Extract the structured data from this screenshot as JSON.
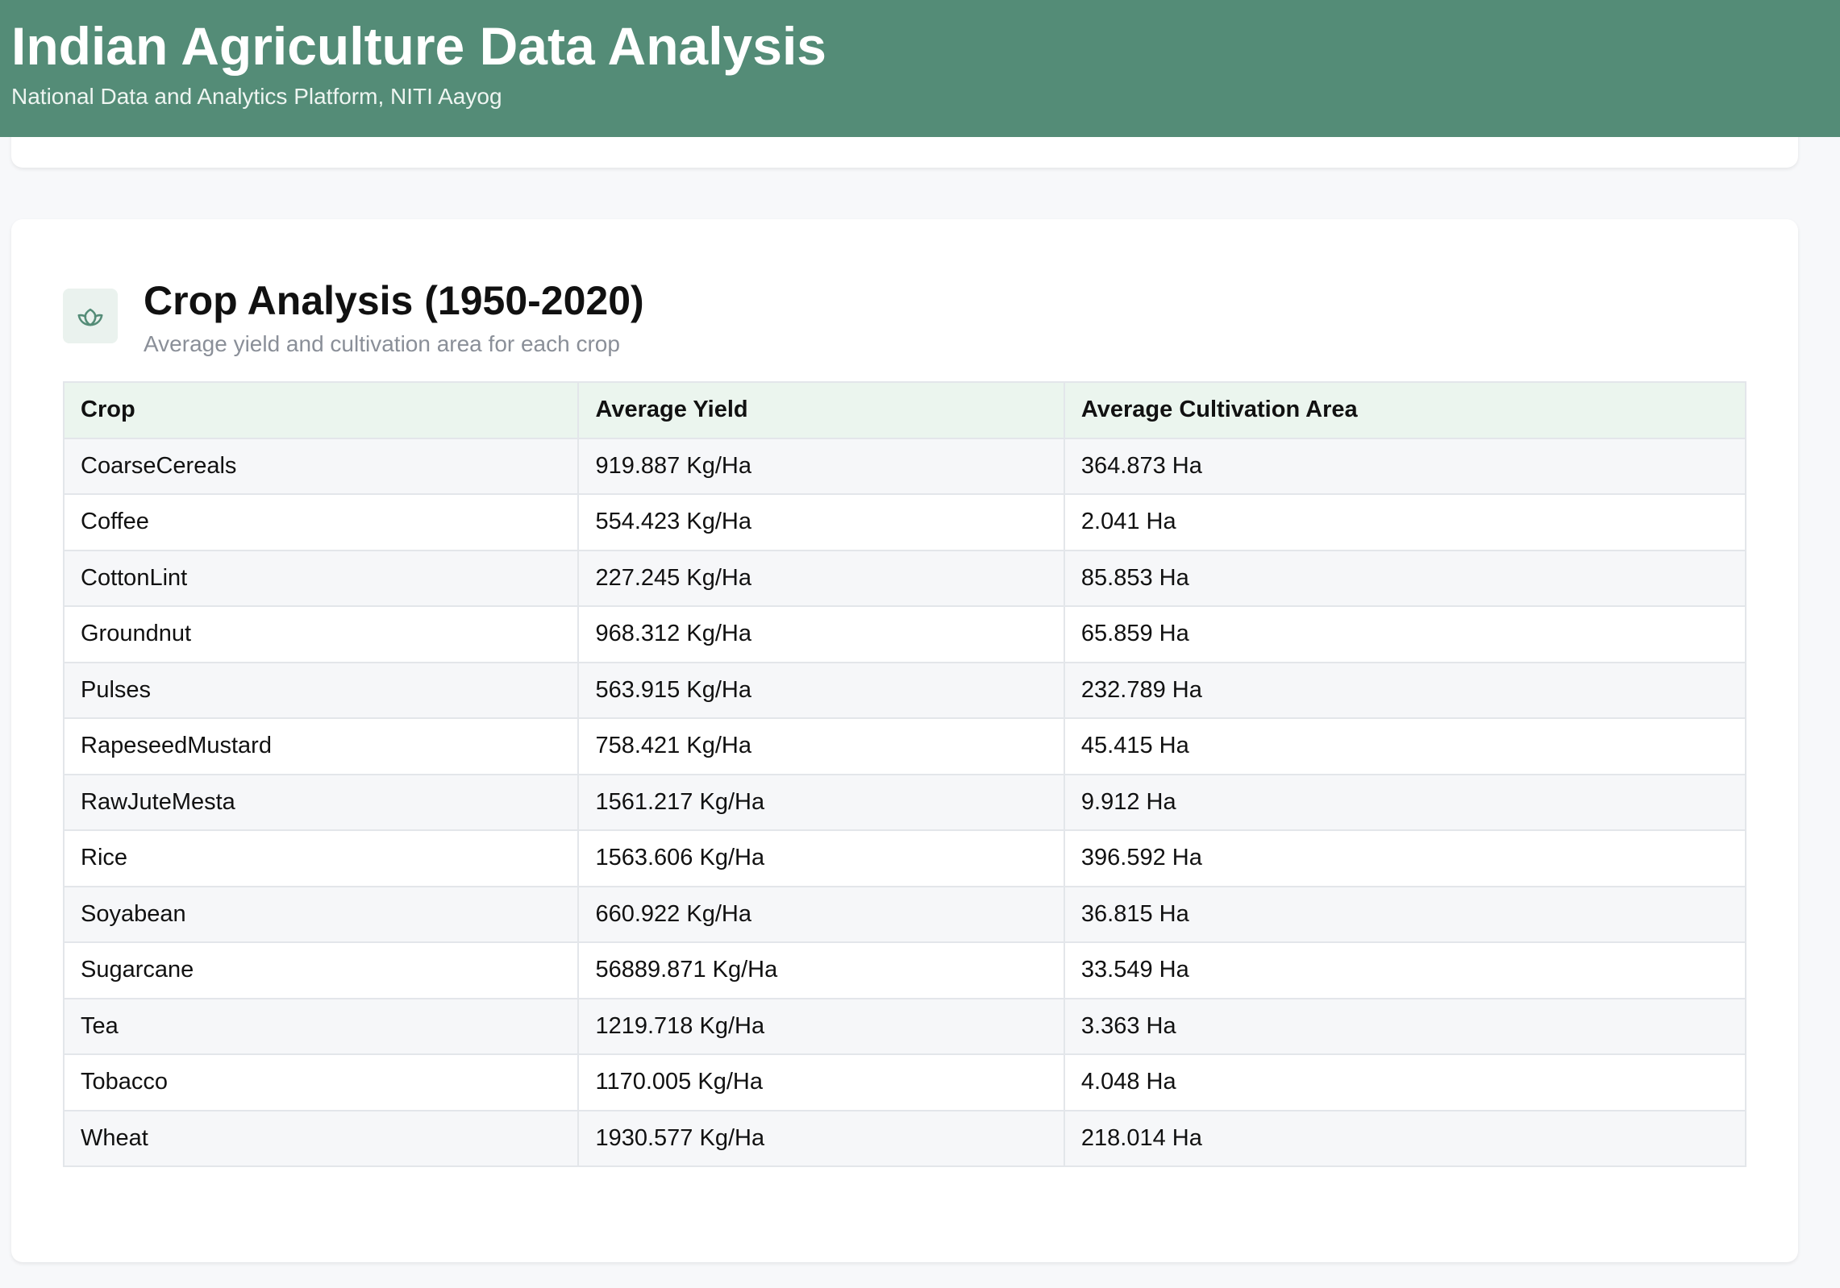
{
  "header": {
    "title": "Indian Agriculture Data Analysis",
    "subtitle": "National Data and Analytics Platform, NITI Aayog"
  },
  "section": {
    "icon": "leaf-icon",
    "title": "Crop Analysis (1950-2020)",
    "subtitle": "Average yield and cultivation area for each crop"
  },
  "table": {
    "columns": [
      "Crop",
      "Average Yield",
      "Average Cultivation Area"
    ],
    "rows": [
      {
        "crop": "CoarseCereals",
        "yield": "919.887 Kg/Ha",
        "area": "364.873 Ha"
      },
      {
        "crop": "Coffee",
        "yield": "554.423 Kg/Ha",
        "area": "2.041 Ha"
      },
      {
        "crop": "CottonLint",
        "yield": "227.245 Kg/Ha",
        "area": "85.853 Ha"
      },
      {
        "crop": "Groundnut",
        "yield": "968.312 Kg/Ha",
        "area": "65.859 Ha"
      },
      {
        "crop": "Pulses",
        "yield": "563.915 Kg/Ha",
        "area": "232.789 Ha"
      },
      {
        "crop": "RapeseedMustard",
        "yield": "758.421 Kg/Ha",
        "area": "45.415 Ha"
      },
      {
        "crop": "RawJuteMesta",
        "yield": "1561.217 Kg/Ha",
        "area": "9.912 Ha"
      },
      {
        "crop": "Rice",
        "yield": "1563.606 Kg/Ha",
        "area": "396.592 Ha"
      },
      {
        "crop": "Soyabean",
        "yield": "660.922 Kg/Ha",
        "area": "36.815 Ha"
      },
      {
        "crop": "Sugarcane",
        "yield": "56889.871 Kg/Ha",
        "area": "33.549 Ha"
      },
      {
        "crop": "Tea",
        "yield": "1219.718 Kg/Ha",
        "area": "3.363 Ha"
      },
      {
        "crop": "Tobacco",
        "yield": "1170.005 Kg/Ha",
        "area": "4.048 Ha"
      },
      {
        "crop": "Wheat",
        "yield": "1930.577 Kg/Ha",
        "area": "218.014 Ha"
      }
    ]
  },
  "colors": {
    "header_bg": "#548c77",
    "table_header_bg": "#ebf5ee",
    "icon_color": "#548c77"
  }
}
